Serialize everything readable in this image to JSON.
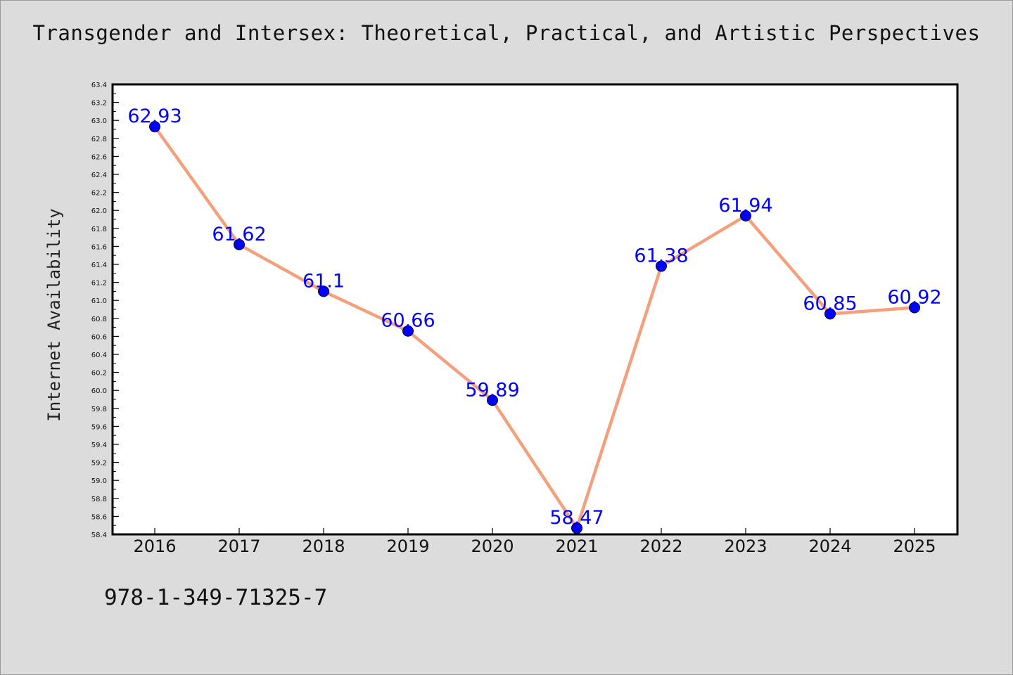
{
  "chart_data": {
    "type": "line",
    "title": "Transgender and Intersex: Theoretical, Practical, and Artistic Perspectives",
    "xlabel": "",
    "ylabel": "Internet Availability",
    "categories": [
      "2016",
      "2017",
      "2018",
      "2019",
      "2020",
      "2021",
      "2022",
      "2023",
      "2024",
      "2025"
    ],
    "values": [
      62.93,
      61.62,
      61.1,
      60.66,
      59.89,
      58.47,
      61.38,
      61.94,
      60.85,
      60.92
    ],
    "data_labels": [
      "62.93",
      "61.62",
      "61.1",
      "60.66",
      "59.89",
      "58.47",
      "61.38",
      "61.94",
      "60.85",
      "60.92"
    ],
    "ylim": [
      58.4,
      63.4
    ],
    "ytick_step": 0.2,
    "yticks": [
      "58.4",
      "58.6",
      "58.8",
      "59.0",
      "59.2",
      "59.4",
      "59.6",
      "59.8",
      "60.0",
      "60.2",
      "60.4",
      "60.6",
      "60.8",
      "61.0",
      "61.2",
      "61.4",
      "61.6",
      "61.8",
      "62.0",
      "62.2",
      "62.4",
      "62.6",
      "62.8",
      "63.0",
      "63.2",
      "63.4"
    ],
    "grid": false,
    "line_color": "#f4a07c",
    "marker_color": "#0000ff",
    "label_color": "#0000ff"
  },
  "footer": {
    "isbn": "978-1-349-71325-7"
  }
}
